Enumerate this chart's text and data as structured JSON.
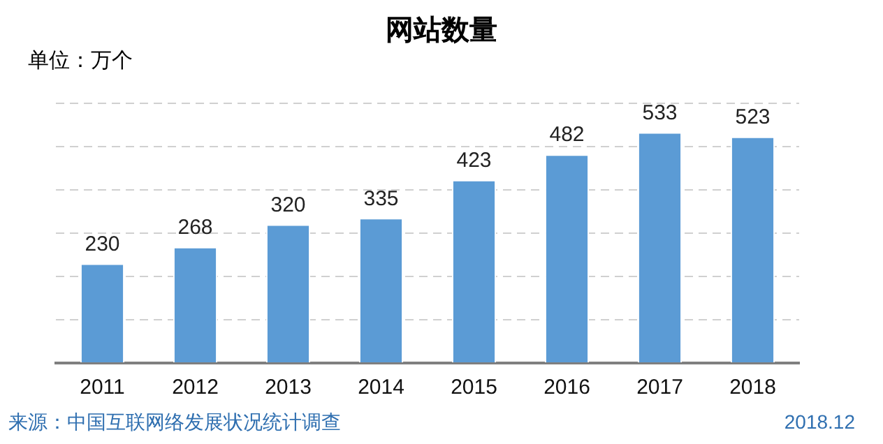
{
  "chart_data": {
    "type": "bar",
    "title": "网站数量",
    "ylabel": "单位：万个",
    "categories": [
      "2011",
      "2012",
      "2013",
      "2014",
      "2015",
      "2016",
      "2017",
      "2018"
    ],
    "values": [
      230,
      268,
      320,
      335,
      423,
      482,
      533,
      523
    ],
    "color": "#5b9bd5",
    "ylim": [
      0,
      600
    ],
    "yticks": [
      {
        "value": 0,
        "label": null
      },
      {
        "value": 100,
        "label": null
      },
      {
        "value": 200,
        "label": null
      },
      {
        "value": 300,
        "label": null
      },
      {
        "value": 400,
        "label": null
      },
      {
        "value": 500,
        "label": null
      },
      {
        "value": 600,
        "label": null
      }
    ],
    "grid": "y",
    "tick_labels": "x",
    "data_labels": true,
    "annotations": [
      "来源：中国互联网络发展状况统计调查",
      "2018.12"
    ]
  }
}
